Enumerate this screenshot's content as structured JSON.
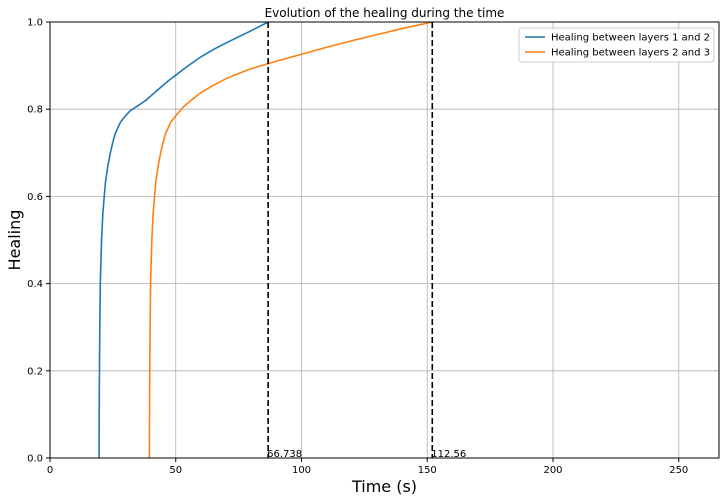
{
  "chart_data": {
    "type": "line",
    "title": "Evolution of the healing during the time",
    "xlabel": "Time (s)",
    "ylabel": "Healing",
    "xlim": [
      0,
      266
    ],
    "ylim": [
      0,
      1.0
    ],
    "xticks": [
      0,
      50,
      100,
      150,
      200,
      250
    ],
    "yticks": [
      0.0,
      0.2,
      0.4,
      0.6,
      0.8,
      1.0
    ],
    "xtick_labels": [
      "0",
      "50",
      "100",
      "150",
      "200",
      "250"
    ],
    "ytick_labels": [
      "0.0",
      "0.2",
      "0.4",
      "0.6",
      "0.8",
      "1.0"
    ],
    "grid": true,
    "legend_position": "top-right",
    "series": [
      {
        "name": "Healing between layers 1 and 2",
        "color": "#1f77b4",
        "x": [
          19.5,
          19.6,
          19.8,
          20.0,
          20.5,
          21.0,
          22.0,
          23.0,
          24.0,
          25.0,
          26.0,
          28.0,
          30.0,
          32.0,
          35.0,
          38.0,
          41.0,
          44.0,
          47.0,
          50.0,
          55.0,
          60.0,
          65.0,
          70.0,
          75.0,
          80.0,
          86.738
        ],
        "y": [
          0.0,
          0.15,
          0.3,
          0.4,
          0.5,
          0.56,
          0.63,
          0.67,
          0.7,
          0.725,
          0.745,
          0.77,
          0.785,
          0.797,
          0.808,
          0.82,
          0.835,
          0.85,
          0.865,
          0.878,
          0.9,
          0.92,
          0.937,
          0.952,
          0.966,
          0.98,
          1.0
        ]
      },
      {
        "name": "Healing between layers 2 and 3",
        "color": "#ff7f0e",
        "x": [
          39.5,
          39.6,
          39.8,
          40.0,
          40.5,
          41.0,
          42.0,
          43.0,
          44.0,
          45.0,
          46.0,
          48.0,
          50.0,
          53.0,
          56.0,
          60.0,
          65.0,
          70.0,
          75.0,
          80.0,
          90.0,
          100.0,
          110.0,
          120.0,
          130.0,
          140.0,
          152.0
        ],
        "y": [
          0.0,
          0.15,
          0.3,
          0.4,
          0.5,
          0.56,
          0.63,
          0.67,
          0.7,
          0.725,
          0.745,
          0.77,
          0.785,
          0.805,
          0.82,
          0.838,
          0.855,
          0.87,
          0.882,
          0.893,
          0.91,
          0.926,
          0.942,
          0.957,
          0.971,
          0.985,
          1.0
        ]
      }
    ],
    "vlines": [
      {
        "x": 86.738,
        "label": "66.738"
      },
      {
        "x": 152.0,
        "label": "112.56"
      }
    ]
  }
}
